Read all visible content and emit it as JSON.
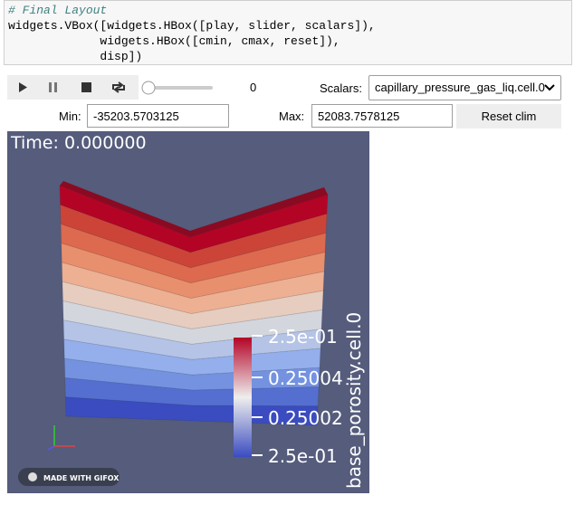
{
  "code": {
    "comment": "# Final Layout",
    "lines": [
      "widgets.VBox([widgets.HBox([play, slider, scalars]),",
      "             widgets.HBox([cmin, cmax, reset]),",
      "             disp])"
    ]
  },
  "controls": {
    "slider_value": "0",
    "scalars_label": "Scalars:",
    "scalars_value": "capillary_pressure_gas_liq.cell.0",
    "min_label": "Min:",
    "min_value": "-35203.5703125",
    "max_label": "Max:",
    "max_value": "52083.7578125",
    "reset": "Reset clim"
  },
  "render": {
    "time": "Time: 0.000000",
    "colorbar_title": "base_porosity.cell.0",
    "colorbar_labels": [
      "2.5e-01",
      "0.25004",
      "0.25002",
      "2.5e-01"
    ],
    "badge": "MADE WITH GIFOX"
  }
}
